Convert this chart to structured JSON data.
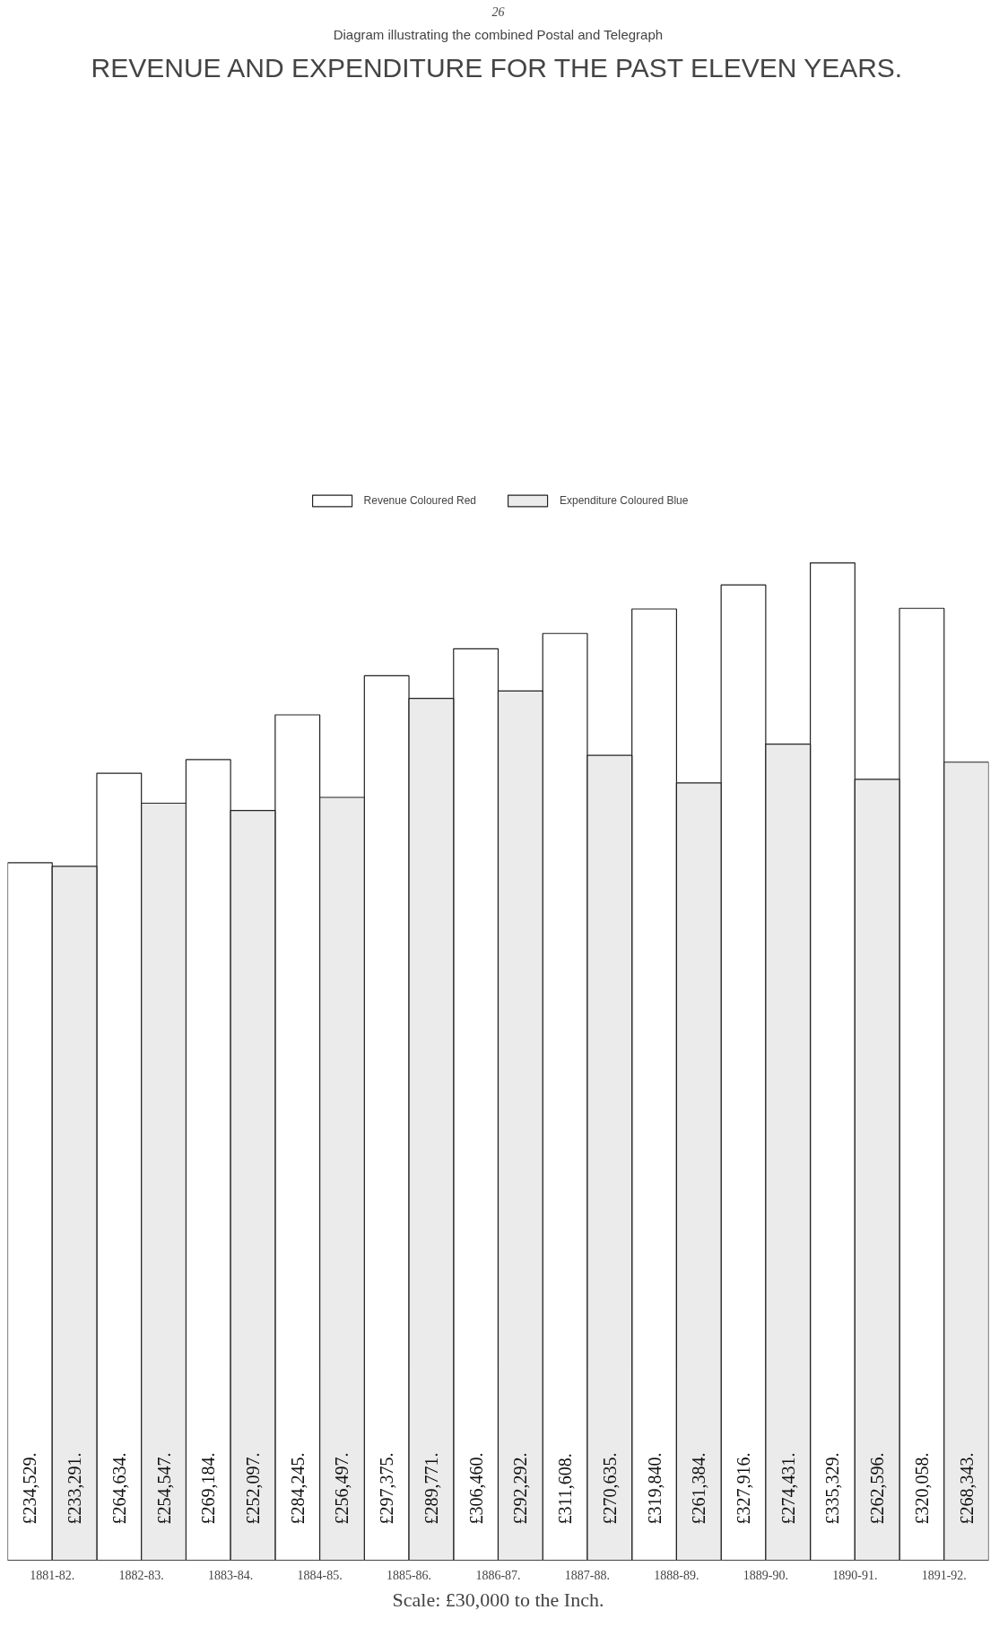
{
  "chart_data": {
    "type": "bar",
    "title": "REVENUE AND EXPENDITURE FOR THE PAST ELEVEN YEARS.",
    "subtitle": "Diagram illustrating the combined Postal and Telegraph",
    "categories": [
      "1881-82.",
      "1882-83.",
      "1883-84.",
      "1884-85.",
      "1885-86.",
      "1886-87.",
      "1887-88.",
      "1888-89.",
      "1889-90.",
      "1890-91.",
      "1891-92."
    ],
    "series": [
      {
        "name": "Revenue Coloured Red",
        "color": "#ffffff",
        "values": [
          234529,
          264634,
          269184,
          284245,
          297375,
          306460,
          311608,
          319840,
          327916,
          335329,
          320058
        ],
        "value_labels": [
          "£234,529.",
          "£264,634.",
          "£269,184.",
          "£284,245.",
          "£297,375.",
          "£306,460.",
          "£311,608.",
          "£319,840.",
          "£327,916.",
          "£335,329.",
          "£320,058."
        ]
      },
      {
        "name": "Expenditure Coloured Blue",
        "color": "#ebebeb",
        "values": [
          233291,
          254547,
          252097,
          256497,
          289771,
          292292,
          270635,
          261384,
          274431,
          262596,
          268343
        ],
        "value_labels": [
          "£233,291.",
          "£254,547.",
          "£252,097.",
          "£256,497.",
          "£289,771.",
          "£292,292.",
          "£270,635.",
          "£261,384.",
          "£274,431.",
          "£262,596.",
          "£268,343."
        ]
      }
    ],
    "annotations": [
      "26",
      "Scale: £30,000 to the Inch."
    ],
    "legend": "top",
    "grid": false
  }
}
